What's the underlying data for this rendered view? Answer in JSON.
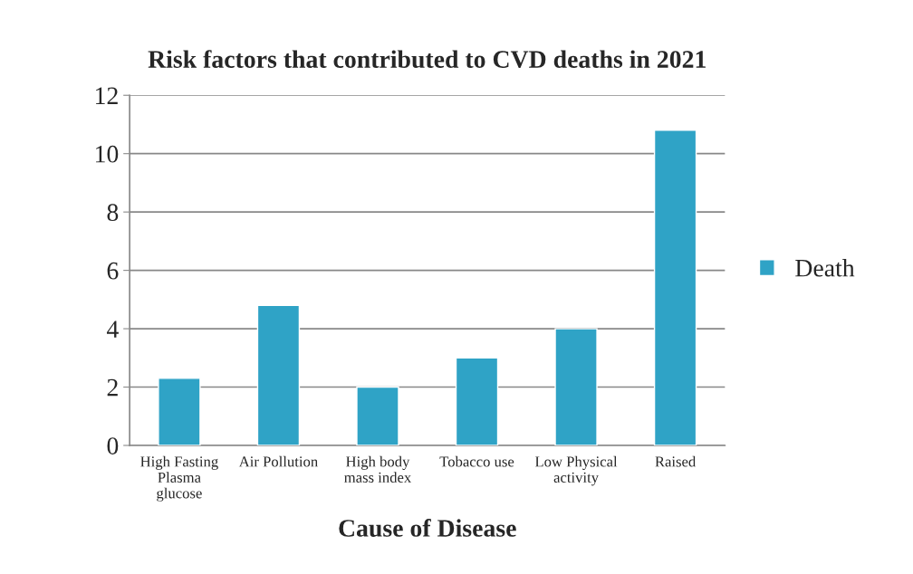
{
  "chart_data": {
    "type": "bar",
    "title": "Risk factors that contributed to CVD deaths in 2021",
    "xlabel": "Cause of Disease",
    "categories": [
      "High Fasting\nPlasma\nglucose",
      "Air Pollution",
      "High body\nmass index",
      "Tobacco use",
      "Low Physical\nactivity",
      "Raised"
    ],
    "series": [
      {
        "name": "Death",
        "color": "#2fa3c6",
        "values": [
          2.3,
          4.8,
          2.0,
          3.0,
          4.0,
          10.8
        ]
      }
    ],
    "ylim": [
      0,
      12
    ],
    "yticks": [
      0,
      2,
      4,
      6,
      8,
      10,
      12
    ],
    "grid": "y",
    "legend": "right"
  }
}
